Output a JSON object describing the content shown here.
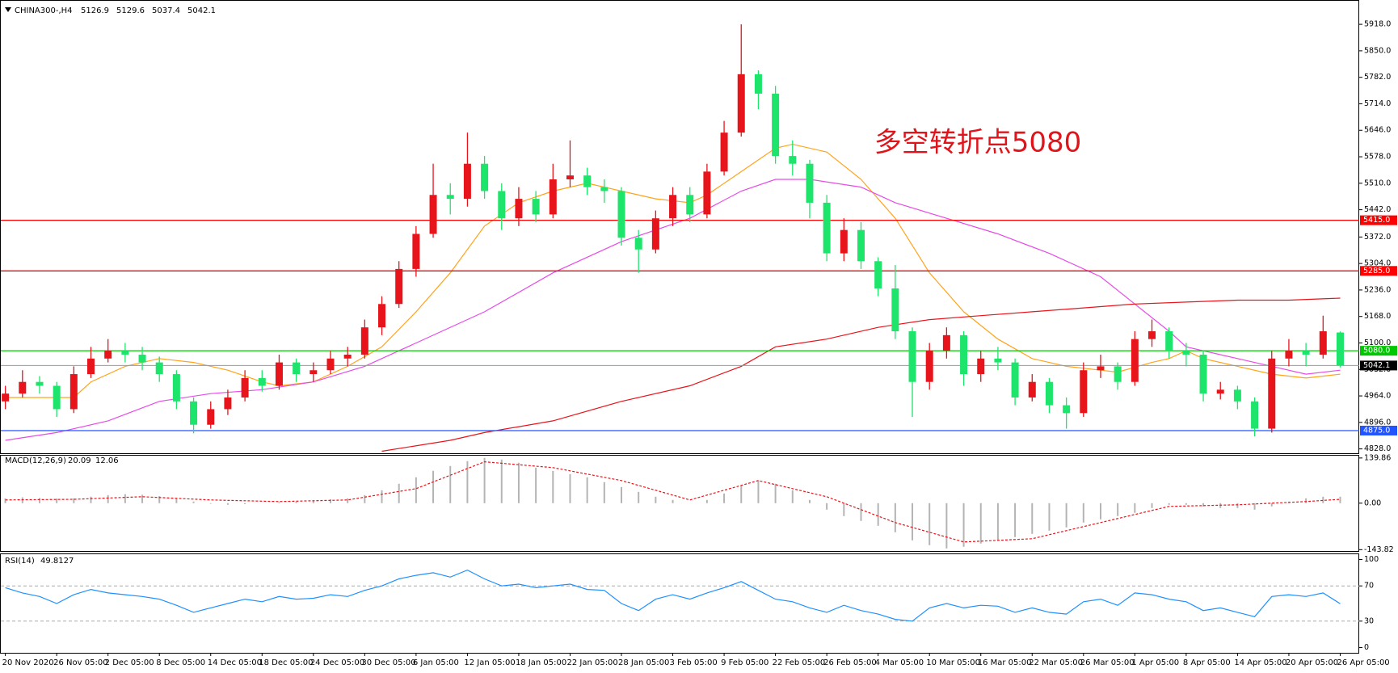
{
  "chart_data": {
    "type": "candlestick",
    "symbol": "CHINA300-,H4",
    "header_values": [
      5126.9,
      5129.6,
      5037.4,
      5042.1
    ],
    "annotation": "多空转折点5080",
    "up_color": "#e8141b",
    "down_color": "#1de56b",
    "categories": [
      "20 Nov 2020",
      null,
      null,
      "26 Nov 05:00",
      null,
      null,
      "2 Dec 05:00",
      null,
      null,
      "8 Dec 05:00",
      null,
      null,
      "14 Dec 05:00",
      null,
      null,
      "18 Dec 05:00",
      null,
      null,
      "24 Dec 05:00",
      null,
      null,
      "30 Dec 05:00",
      null,
      null,
      "6 Jan 05:00",
      null,
      null,
      "12 Jan 05:00",
      null,
      null,
      "18 Jan 05:00",
      null,
      null,
      "22 Jan 05:00",
      null,
      null,
      "28 Jan 05:00",
      null,
      null,
      "3 Feb 05:00",
      null,
      null,
      "9 Feb 05:00",
      null,
      null,
      "22 Feb 05:00",
      null,
      null,
      "26 Feb 05:00",
      null,
      null,
      "4 Mar 05:00",
      null,
      null,
      "10 Mar 05:00",
      null,
      null,
      "16 Mar 05:00",
      null,
      null,
      "22 Mar 05:00",
      null,
      null,
      "26 Mar 05:00",
      null,
      null,
      "1 Apr 05:00",
      null,
      null,
      "8 Apr 05:00",
      null,
      null,
      "14 Apr 05:00",
      null,
      null,
      "20 Apr 05:00",
      null,
      null,
      "26 Apr 05:00"
    ],
    "candles": [
      [
        4950,
        4990,
        4930,
        4970
      ],
      [
        4970,
        5030,
        4960,
        5000
      ],
      [
        5000,
        5015,
        4970,
        4990
      ],
      [
        4990,
        5000,
        4910,
        4930
      ],
      [
        4930,
        5040,
        4920,
        5020
      ],
      [
        5020,
        5090,
        5010,
        5060
      ],
      [
        5060,
        5110,
        5050,
        5080
      ],
      [
        5080,
        5100,
        5050,
        5070
      ],
      [
        5070,
        5090,
        5030,
        5050
      ],
      [
        5050,
        5065,
        5000,
        5020
      ],
      [
        5020,
        5030,
        4930,
        4950
      ],
      [
        4950,
        4960,
        4868,
        4890
      ],
      [
        4890,
        4950,
        4880,
        4930
      ],
      [
        4930,
        4980,
        4915,
        4960
      ],
      [
        4960,
        5030,
        4950,
        5010
      ],
      [
        5010,
        5030,
        4975,
        4990
      ],
      [
        4990,
        5070,
        4980,
        5050
      ],
      [
        5050,
        5060,
        5000,
        5020
      ],
      [
        5020,
        5050,
        5000,
        5030
      ],
      [
        5030,
        5080,
        5020,
        5060
      ],
      [
        5060,
        5090,
        5040,
        5070
      ],
      [
        5070,
        5160,
        5060,
        5140
      ],
      [
        5140,
        5220,
        5120,
        5200
      ],
      [
        5200,
        5310,
        5190,
        5290
      ],
      [
        5290,
        5400,
        5270,
        5380
      ],
      [
        5380,
        5560,
        5370,
        5480
      ],
      [
        5480,
        5510,
        5430,
        5470
      ],
      [
        5470,
        5640,
        5450,
        5560
      ],
      [
        5560,
        5580,
        5470,
        5490
      ],
      [
        5490,
        5510,
        5390,
        5420
      ],
      [
        5420,
        5500,
        5400,
        5470
      ],
      [
        5470,
        5490,
        5410,
        5430
      ],
      [
        5430,
        5560,
        5420,
        5520
      ],
      [
        5520,
        5620,
        5500,
        5530
      ],
      [
        5530,
        5550,
        5480,
        5500
      ],
      [
        5500,
        5520,
        5460,
        5490
      ],
      [
        5490,
        5500,
        5350,
        5370
      ],
      [
        5370,
        5390,
        5280,
        5340
      ],
      [
        5340,
        5440,
        5330,
        5420
      ],
      [
        5420,
        5500,
        5400,
        5480
      ],
      [
        5480,
        5500,
        5410,
        5430
      ],
      [
        5430,
        5560,
        5420,
        5540
      ],
      [
        5540,
        5670,
        5530,
        5640
      ],
      [
        5640,
        5918,
        5630,
        5790
      ],
      [
        5790,
        5800,
        5700,
        5740
      ],
      [
        5740,
        5760,
        5560,
        5580
      ],
      [
        5580,
        5620,
        5530,
        5560
      ],
      [
        5560,
        5570,
        5420,
        5460
      ],
      [
        5460,
        5480,
        5310,
        5330
      ],
      [
        5330,
        5420,
        5310,
        5390
      ],
      [
        5390,
        5410,
        5290,
        5310
      ],
      [
        5310,
        5320,
        5220,
        5240
      ],
      [
        5240,
        5300,
        5110,
        5130
      ],
      [
        5130,
        5140,
        4910,
        5000
      ],
      [
        5000,
        5100,
        4980,
        5080
      ],
      [
        5080,
        5140,
        5060,
        5120
      ],
      [
        5120,
        5130,
        4990,
        5020
      ],
      [
        5020,
        5080,
        5000,
        5060
      ],
      [
        5060,
        5090,
        5030,
        5050
      ],
      [
        5050,
        5060,
        4940,
        4960
      ],
      [
        4960,
        5020,
        4950,
        5000
      ],
      [
        5000,
        5010,
        4920,
        4940
      ],
      [
        4940,
        4960,
        4880,
        4920
      ],
      [
        4920,
        5050,
        4910,
        5030
      ],
      [
        5030,
        5070,
        5010,
        5040
      ],
      [
        5040,
        5050,
        4980,
        5000
      ],
      [
        5000,
        5130,
        4990,
        5110
      ],
      [
        5110,
        5160,
        5090,
        5130
      ],
      [
        5130,
        5140,
        5060,
        5080
      ],
      [
        5080,
        5100,
        5040,
        5070
      ],
      [
        5070,
        5080,
        4950,
        4970
      ],
      [
        4970,
        5000,
        4955,
        4980
      ],
      [
        4980,
        4990,
        4930,
        4950
      ],
      [
        4950,
        4960,
        4860,
        4880
      ],
      [
        4880,
        5080,
        4870,
        5060
      ],
      [
        5060,
        5110,
        5040,
        5080
      ],
      [
        5080,
        5100,
        5040,
        5070
      ],
      [
        5070,
        5170,
        5060,
        5130
      ],
      [
        5126.9,
        5129.6,
        5037.4,
        5042.1
      ]
    ],
    "series": [
      {
        "color": "#ffa31a",
        "x": [
          0,
          4,
          5,
          7,
          9,
          11,
          13,
          15,
          16,
          18,
          20,
          22,
          24,
          26,
          28,
          30,
          32,
          34,
          36,
          38,
          40,
          41,
          43,
          45,
          46,
          48,
          50,
          52,
          54,
          56,
          58,
          60,
          62,
          64,
          65,
          67,
          68,
          69,
          70,
          72,
          74,
          76,
          78
        ],
        "values": [
          4960,
          4960,
          5000,
          5040,
          5060,
          5050,
          5030,
          5000,
          4990,
          5000,
          5040,
          5090,
          5180,
          5280,
          5400,
          5460,
          5490,
          5510,
          5490,
          5470,
          5460,
          5480,
          5540,
          5600,
          5610,
          5590,
          5520,
          5420,
          5280,
          5180,
          5110,
          5060,
          5040,
          5030,
          5025,
          5050,
          5060,
          5080,
          5060,
          5040,
          5020,
          5010,
          5020
        ]
      },
      {
        "color": "#e64ce6",
        "x": [
          0,
          3,
          6,
          9,
          12,
          15,
          18,
          21,
          24,
          28,
          32,
          36,
          40,
          43,
          45,
          47,
          50,
          52,
          55,
          58,
          61,
          64,
          66,
          68,
          69,
          72,
          74,
          76,
          78
        ],
        "values": [
          4850,
          4870,
          4900,
          4950,
          4970,
          4980,
          5000,
          5040,
          5100,
          5180,
          5280,
          5360,
          5420,
          5490,
          5520,
          5520,
          5500,
          5460,
          5420,
          5380,
          5330,
          5270,
          5200,
          5130,
          5090,
          5060,
          5040,
          5020,
          5030
        ]
      },
      {
        "color": "#e8141b",
        "x": [
          22,
          26,
          28,
          32,
          36,
          40,
          43,
          45,
          48,
          51,
          54,
          57,
          60,
          63,
          66,
          69,
          72,
          75,
          78
        ],
        "values": [
          4822,
          4850,
          4870,
          4900,
          4950,
          4990,
          5040,
          5090,
          5110,
          5140,
          5160,
          5170,
          5180,
          5190,
          5200,
          5205,
          5210,
          5210,
          5215
        ]
      }
    ],
    "levels": [
      {
        "value": 5415.0,
        "label": "5415.0",
        "color": "#ff0000"
      },
      {
        "value": 5285.0,
        "label": "5285.0",
        "color": "#ff0000"
      },
      {
        "value": 5080.0,
        "label": "5080.0",
        "color": "#00c800"
      },
      {
        "value": 4875.0,
        "label": "4875.0",
        "color": "#2255ff"
      }
    ],
    "last_price": 5042.1,
    "ylim": [
      4821,
      5968
    ],
    "yticks": [
      {
        "value": 5918,
        "label": "5918.0"
      },
      {
        "value": 5850,
        "label": "5850.0"
      },
      {
        "value": 5782,
        "label": "5782.0"
      },
      {
        "value": 5714,
        "label": "5714.0"
      },
      {
        "value": 5646,
        "label": "5646.0"
      },
      {
        "value": 5578,
        "label": "5578.0"
      },
      {
        "value": 5510,
        "label": "5510.0"
      },
      {
        "value": 5442,
        "label": "5442.0"
      },
      {
        "value": 5372,
        "label": "5372.0"
      },
      {
        "value": 5304,
        "label": "5304.0"
      },
      {
        "value": 5236,
        "label": "5236.0"
      },
      {
        "value": 5168,
        "label": "5168.0"
      },
      {
        "value": 5100,
        "label": "5100.0"
      },
      {
        "value": 5032,
        "label": "5032.0"
      },
      {
        "value": 4964,
        "label": "4964.0"
      },
      {
        "value": 4896,
        "label": "4896.0"
      },
      {
        "value": 4828,
        "label": "4828.0"
      }
    ],
    "macd": {
      "label": "MACD(12,26,9)",
      "header_values": [
        20.09,
        12.06
      ],
      "color": "#b4b4b4",
      "signal_color": "#e8141b",
      "values": [
        15,
        18,
        16,
        14,
        15,
        20,
        25,
        28,
        26,
        22,
        15,
        5,
        -2,
        -5,
        -3,
        0,
        3,
        5,
        8,
        12,
        15,
        25,
        40,
        60,
        80,
        100,
        115,
        130,
        140,
        135,
        125,
        110,
        100,
        90,
        80,
        65,
        50,
        35,
        20,
        10,
        0,
        10,
        30,
        55,
        70,
        60,
        40,
        10,
        -20,
        -40,
        -55,
        -70,
        -90,
        -115,
        -130,
        -140,
        -135,
        -125,
        -115,
        -105,
        -95,
        -85,
        -75,
        -60,
        -50,
        -40,
        -30,
        -15,
        -5,
        -5,
        -10,
        -15,
        -15,
        -20,
        -10,
        5,
        15,
        20,
        20.09
      ],
      "signal_x": [
        0,
        4,
        8,
        12,
        16,
        20,
        24,
        28,
        32,
        36,
        40,
        44,
        48,
        52,
        56,
        60,
        64,
        68,
        72,
        76,
        78
      ],
      "signal": [
        10,
        12,
        20,
        10,
        5,
        10,
        45,
        128,
        110,
        70,
        10,
        70,
        20,
        -60,
        -120,
        -110,
        -60,
        -10,
        -5,
        5,
        12.06
      ],
      "ylim": [
        -148,
        147
      ],
      "yticks": [
        139.86,
        {
          "value": 0,
          "label": "0.00"
        },
        -143.82
      ]
    },
    "rsi": {
      "label": "RSI(14)",
      "header_value": 49.8127,
      "color": "#1e90ff",
      "values": [
        68,
        62,
        58,
        50,
        60,
        66,
        62,
        60,
        58,
        55,
        48,
        40,
        45,
        50,
        55,
        52,
        58,
        55,
        56,
        60,
        58,
        65,
        70,
        78,
        82,
        85,
        80,
        88,
        78,
        70,
        72,
        68,
        70,
        72,
        66,
        65,
        50,
        42,
        55,
        60,
        55,
        62,
        68,
        75,
        65,
        55,
        52,
        45,
        40,
        48,
        42,
        38,
        32,
        30,
        45,
        50,
        45,
        48,
        47,
        40,
        45,
        40,
        38,
        52,
        55,
        48,
        62,
        60,
        55,
        52,
        42,
        45,
        40,
        35,
        58,
        60,
        58,
        62,
        49.8127
      ],
      "ylim": [
        -6,
        106
      ],
      "yticks": [
        100,
        70,
        30,
        0
      ]
    }
  }
}
